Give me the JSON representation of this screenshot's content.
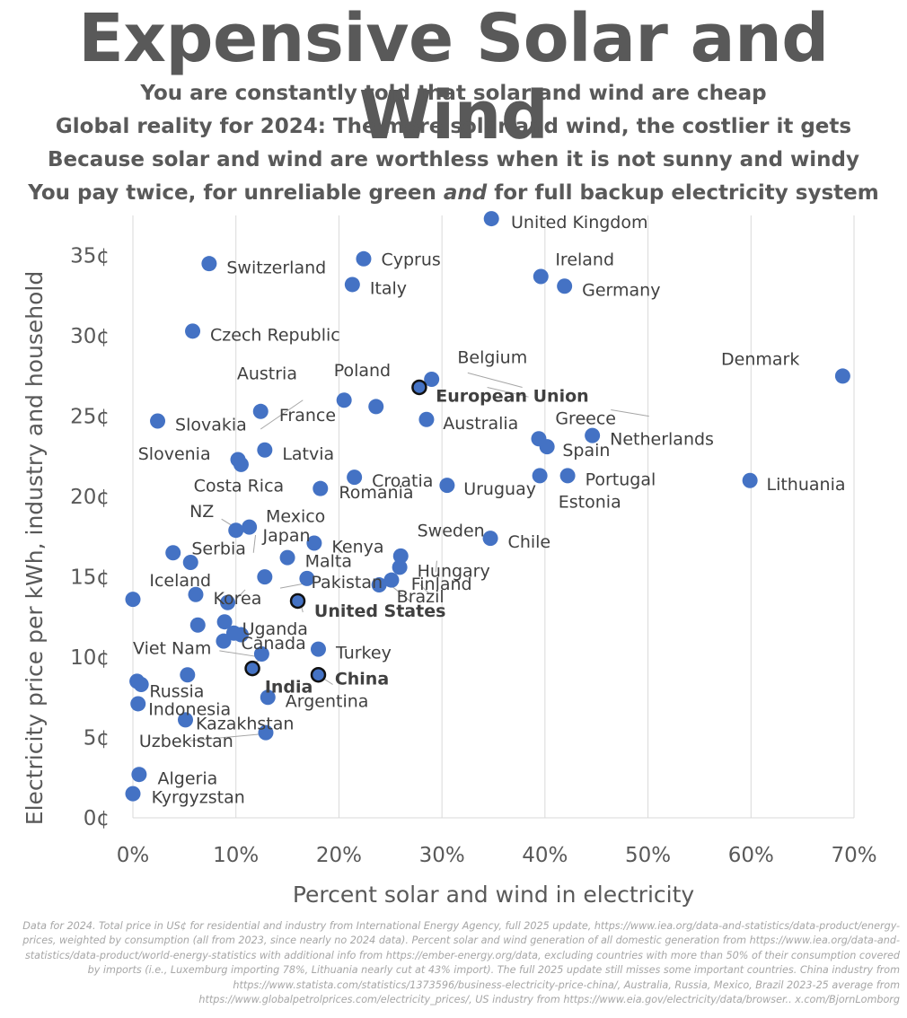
{
  "header": {
    "title": "Expensive Solar and Wind",
    "subtitles": [
      "You are constantly told that solar and wind are cheap",
      "Global reality for 2024: The more solar and wind, the costlier it gets",
      "Because solar and wind are worthless when it is not sunny and windy"
    ],
    "subtitle4": {
      "before": "You pay twice, for unreliable green ",
      "emph": "and",
      "after": " for full backup electricity system"
    }
  },
  "footnote": "Data for 2024. Total price in US¢ for residential and industry from International Energy Agency, full 2025 update, https://www.iea.org/data-and-statistics/data-product/energy-prices, weighted by consumption (all from 2023, since nearly no 2024 data). Percent solar and wind generation of all domestic generation from https://www.iea.org/data-and-statistics/data-product/world-energy-statistics with additional info from https://ember-energy.org/data, excluding countries with more than 50% of their consumption covered by imports (i.e., Luxemburg importing 78%, Lithuania nearly cut at 43% import). The full 2025 update still misses some important countries. China industry from https://www.statista.com/statistics/1373596/business-electricity-price-china/, Australia, Russia, Mexico, Brazil 2023-25 average from https://www.globalpetrolprices.com/electricity_prices/, US industry from https://www.eia.gov/electricity/data/browser.. x.com/BjornLomborg",
  "chart_data": {
    "type": "scatter",
    "title": "Expensive Solar and Wind",
    "xlabel": "Percent solar and wind in electricity",
    "ylabel": "Electricity price per kWh, industry and household",
    "xlim": [
      0,
      70
    ],
    "ylim": [
      0,
      37.5
    ],
    "x_ticks": [
      0,
      10,
      20,
      30,
      40,
      50,
      60,
      70
    ],
    "x_tick_labels": [
      "0%",
      "10%",
      "20%",
      "30%",
      "40%",
      "50%",
      "60%",
      "70%"
    ],
    "y_ticks": [
      0,
      5,
      10,
      15,
      20,
      25,
      30,
      35
    ],
    "y_tick_labels": [
      "0¢",
      "5¢",
      "10¢",
      "15¢",
      "20¢",
      "25¢",
      "30¢",
      "35¢"
    ],
    "grid": "vertical",
    "colors": {
      "point": "#4472c4",
      "highlight_edge": "#111111",
      "leader": "#a6a6a6"
    },
    "points": [
      {
        "name": "United Kingdom",
        "x": 34.8,
        "y": 37.3
      },
      {
        "name": "Cyprus",
        "x": 22.4,
        "y": 34.8
      },
      {
        "name": "Switzerland",
        "x": 7.4,
        "y": 34.5
      },
      {
        "name": "Ireland",
        "x": 39.6,
        "y": 33.7
      },
      {
        "name": "Italy",
        "x": 21.3,
        "y": 33.2
      },
      {
        "name": "Germany",
        "x": 41.9,
        "y": 33.1
      },
      {
        "name": "Czech Republic",
        "x": 5.8,
        "y": 30.3
      },
      {
        "name": "Belgium",
        "x": 29.0,
        "y": 27.3
      },
      {
        "name": "Denmark",
        "x": 68.9,
        "y": 27.5
      },
      {
        "name": "European Union",
        "x": 27.8,
        "y": 26.8,
        "highlight": true
      },
      {
        "name": "Austria",
        "x": 20.5,
        "y": 26.0
      },
      {
        "name": "Poland",
        "x": 23.6,
        "y": 25.6
      },
      {
        "name": "France",
        "x": 12.4,
        "y": 25.3
      },
      {
        "name": "Australia",
        "x": 28.5,
        "y": 24.8
      },
      {
        "name": "Slovakia",
        "x": 2.4,
        "y": 24.7
      },
      {
        "name": "Greece",
        "x": 39.4,
        "y": 23.6
      },
      {
        "name": "Netherlands",
        "x": 44.6,
        "y": 23.8
      },
      {
        "name": "Spain",
        "x": 40.2,
        "y": 23.1
      },
      {
        "name": "Latvia",
        "x": 12.8,
        "y": 22.9
      },
      {
        "name": "Slovenia",
        "x": 10.2,
        "y": 22.3
      },
      {
        "name": "Costa Rica",
        "x": 10.5,
        "y": 22.0
      },
      {
        "name": "Croatia",
        "x": 21.5,
        "y": 21.2
      },
      {
        "name": "Portugal",
        "x": 42.2,
        "y": 21.3
      },
      {
        "name": "Estonia",
        "x": 39.5,
        "y": 21.3
      },
      {
        "name": "Lithuania",
        "x": 59.9,
        "y": 21.0
      },
      {
        "name": "Uruguay",
        "x": 30.5,
        "y": 20.7
      },
      {
        "name": "Romania",
        "x": 18.2,
        "y": 20.5
      },
      {
        "name": "Mexico",
        "x": 11.3,
        "y": 18.1
      },
      {
        "name": "NZ",
        "x": 10.0,
        "y": 17.9
      },
      {
        "name": "Chile",
        "x": 34.7,
        "y": 17.4
      },
      {
        "name": "Kenya",
        "x": 17.6,
        "y": 17.1
      },
      {
        "name": "Serbia",
        "x": 3.9,
        "y": 16.5
      },
      {
        "name": "Sweden",
        "x": 26.0,
        "y": 16.3
      },
      {
        "name": "Malta",
        "x": 15.0,
        "y": 16.2
      },
      {
        "name": "Japan",
        "x": 5.6,
        "y": 15.9
      },
      {
        "name": "Hungary",
        "x": 25.9,
        "y": 15.6
      },
      {
        "name": "Iceland",
        "x": 0.0,
        "y": 13.6
      },
      {
        "name": "Pakistan",
        "x": 12.8,
        "y": 15.0
      },
      {
        "name": "Finland",
        "x": 16.9,
        "y": 14.9
      },
      {
        "name": "Turkey",
        "x": 25.1,
        "y": 14.8
      },
      {
        "name": "Brazil",
        "x": 23.9,
        "y": 14.5
      },
      {
        "name": "Korea",
        "x": 6.1,
        "y": 13.9
      },
      {
        "name": "Canada",
        "x": 9.2,
        "y": 13.4
      },
      {
        "name": "United States",
        "x": 16.0,
        "y": 13.5,
        "highlight": true
      },
      {
        "name": "Uganda",
        "x": 8.9,
        "y": 12.2
      },
      {
        "name": "Viet Nam",
        "x": 6.3,
        "y": 12.0
      },
      {
        "name": "Uganda_b",
        "x": 9.8,
        "y": 11.5
      },
      {
        "name": "Canada_b",
        "x": 10.5,
        "y": 11.4
      },
      {
        "name": "Viet Nam_b",
        "x": 8.8,
        "y": 11.0
      },
      {
        "name": "Turkey_b",
        "x": 18.0,
        "y": 10.5
      },
      {
        "name": "Canada_c",
        "x": 12.5,
        "y": 10.2
      },
      {
        "name": "India",
        "x": 11.6,
        "y": 9.3,
        "highlight": true
      },
      {
        "name": "China",
        "x": 18.0,
        "y": 8.9,
        "highlight": true
      },
      {
        "name": "Viet Nam_c",
        "x": 5.3,
        "y": 8.9
      },
      {
        "name": "Russia",
        "x": 0.4,
        "y": 8.5
      },
      {
        "name": "Russia_b",
        "x": 0.8,
        "y": 8.3
      },
      {
        "name": "Argentina",
        "x": 13.1,
        "y": 7.5
      },
      {
        "name": "Indonesia",
        "x": 0.5,
        "y": 7.1
      },
      {
        "name": "Kazakhstan",
        "x": 5.1,
        "y": 6.1
      },
      {
        "name": "Uzbekistan",
        "x": 12.9,
        "y": 5.3
      },
      {
        "name": "Algeria",
        "x": 0.6,
        "y": 2.7
      },
      {
        "name": "Kyrgyzstan",
        "x": 0.0,
        "y": 1.5
      }
    ],
    "annotations": [
      {
        "text": "United Kingdom",
        "x": 36.7,
        "y": 37.1
      },
      {
        "text": "Cyprus",
        "x": 24.1,
        "y": 34.8
      },
      {
        "text": "Switzerland",
        "x": 9.1,
        "y": 34.3
      },
      {
        "text": "Ireland",
        "x": 41.0,
        "y": 34.8
      },
      {
        "text": "Italy",
        "x": 23.0,
        "y": 33.0
      },
      {
        "text": "Germany",
        "x": 43.6,
        "y": 32.9
      },
      {
        "text": "Czech Republic",
        "x": 7.5,
        "y": 30.1
      },
      {
        "text": "Belgium",
        "x": 31.5,
        "y": 28.7
      },
      {
        "text": "Denmark",
        "x": 57.1,
        "y": 28.6
      },
      {
        "text": "European Union",
        "x": 29.4,
        "y": 26.3,
        "bold": true
      },
      {
        "text": "Austria",
        "x": 10.1,
        "y": 27.7
      },
      {
        "text": "Poland",
        "x": 19.5,
        "y": 27.9
      },
      {
        "text": "France",
        "x": 14.2,
        "y": 25.1
      },
      {
        "text": "Australia",
        "x": 30.1,
        "y": 24.6
      },
      {
        "text": "Slovakia",
        "x": 4.1,
        "y": 24.5
      },
      {
        "text": "Greece",
        "x": 41.0,
        "y": 24.9
      },
      {
        "text": "Netherlands",
        "x": 46.3,
        "y": 23.6
      },
      {
        "text": "Spain",
        "x": 41.7,
        "y": 22.9
      },
      {
        "text": "Latvia",
        "x": 14.5,
        "y": 22.7
      },
      {
        "text": "Slovenia",
        "x": 0.5,
        "y": 22.7
      },
      {
        "text": "Costa Rica",
        "x": 5.9,
        "y": 20.7
      },
      {
        "text": "Croatia",
        "x": 23.2,
        "y": 21.0
      },
      {
        "text": "Portugal",
        "x": 43.9,
        "y": 21.1
      },
      {
        "text": "Estonia",
        "x": 41.3,
        "y": 19.7
      },
      {
        "text": "Lithuania",
        "x": 61.5,
        "y": 20.8
      },
      {
        "text": "Uruguay",
        "x": 32.1,
        "y": 20.5
      },
      {
        "text": "Romania",
        "x": 20.0,
        "y": 20.3
      },
      {
        "text": "Mexico",
        "x": 12.9,
        "y": 18.8
      },
      {
        "text": "NZ",
        "x": 5.5,
        "y": 19.1
      },
      {
        "text": "Japan",
        "x": 12.6,
        "y": 17.6
      },
      {
        "text": "Chile",
        "x": 36.4,
        "y": 17.2
      },
      {
        "text": "Kenya",
        "x": 19.3,
        "y": 16.9
      },
      {
        "text": "Serbia",
        "x": 5.7,
        "y": 16.8
      },
      {
        "text": "Sweden",
        "x": 27.6,
        "y": 17.9
      },
      {
        "text": "Malta",
        "x": 16.7,
        "y": 16.0
      },
      {
        "text": "Hungary",
        "x": 27.6,
        "y": 15.4
      },
      {
        "text": "Iceland",
        "x": 1.6,
        "y": 14.8
      },
      {
        "text": "Pakistan",
        "x": 17.3,
        "y": 14.7
      },
      {
        "text": "Finland",
        "x": 27.0,
        "y": 14.6
      },
      {
        "text": "Brazil",
        "x": 25.6,
        "y": 13.8
      },
      {
        "text": "Korea",
        "x": 7.8,
        "y": 13.7
      },
      {
        "text": "United States",
        "x": 17.6,
        "y": 12.9,
        "bold": true
      },
      {
        "text": "Uganda",
        "x": 10.6,
        "y": 11.8
      },
      {
        "text": "Canada",
        "x": 10.5,
        "y": 10.9
      },
      {
        "text": "Viet Nam",
        "x": 0.0,
        "y": 10.6
      },
      {
        "text": "Turkey",
        "x": 19.7,
        "y": 10.3
      },
      {
        "text": "India",
        "x": 12.8,
        "y": 8.2,
        "bold": true
      },
      {
        "text": "China",
        "x": 19.6,
        "y": 8.7,
        "bold": true
      },
      {
        "text": "Russia",
        "x": 1.6,
        "y": 7.9
      },
      {
        "text": "Argentina",
        "x": 14.8,
        "y": 7.3
      },
      {
        "text": "Indonesia",
        "x": 1.5,
        "y": 6.8
      },
      {
        "text": "Kazakhstan",
        "x": 6.1,
        "y": 5.9
      },
      {
        "text": "Uzbekistan",
        "x": 0.6,
        "y": 4.8
      },
      {
        "text": "Algeria",
        "x": 2.4,
        "y": 2.5
      },
      {
        "text": "Kyrgyzstan",
        "x": 1.8,
        "y": 1.3
      }
    ],
    "leaders": [
      [
        34.4,
        26.8,
        38.4,
        26.2
      ],
      [
        44.0,
        24.8,
        43.1,
        24.9
      ],
      [
        32.5,
        27.7,
        37.8,
        26.8
      ],
      [
        12.4,
        24.2,
        16.5,
        26.0
      ],
      [
        46.4,
        25.4,
        50.1,
        25.0
      ],
      [
        26.9,
        13.5,
        24.4,
        14.8
      ],
      [
        27.9,
        14.5,
        28.7,
        14.0
      ],
      [
        29.4,
        15.3,
        29.5,
        16.0
      ],
      [
        8.6,
        18.6,
        9.6,
        18.2
      ],
      [
        11.7,
        16.5,
        11.9,
        17.6
      ],
      [
        14.3,
        14.3,
        16.8,
        14.6
      ],
      [
        12.3,
        9.8,
        11.0,
        9.5
      ],
      [
        8.4,
        10.4,
        12.4,
        10.0
      ],
      [
        9.7,
        11.1,
        9.9,
        11.4
      ],
      [
        10.9,
        14.2,
        10.0,
        13.6
      ],
      [
        10.7,
        11.4,
        10.1,
        11.5
      ],
      [
        16.5,
        12.8,
        16.3,
        13.3
      ],
      [
        19.4,
        8.3,
        18.2,
        8.8
      ],
      [
        5.5,
        4.8,
        12.2,
        5.2
      ]
    ]
  }
}
